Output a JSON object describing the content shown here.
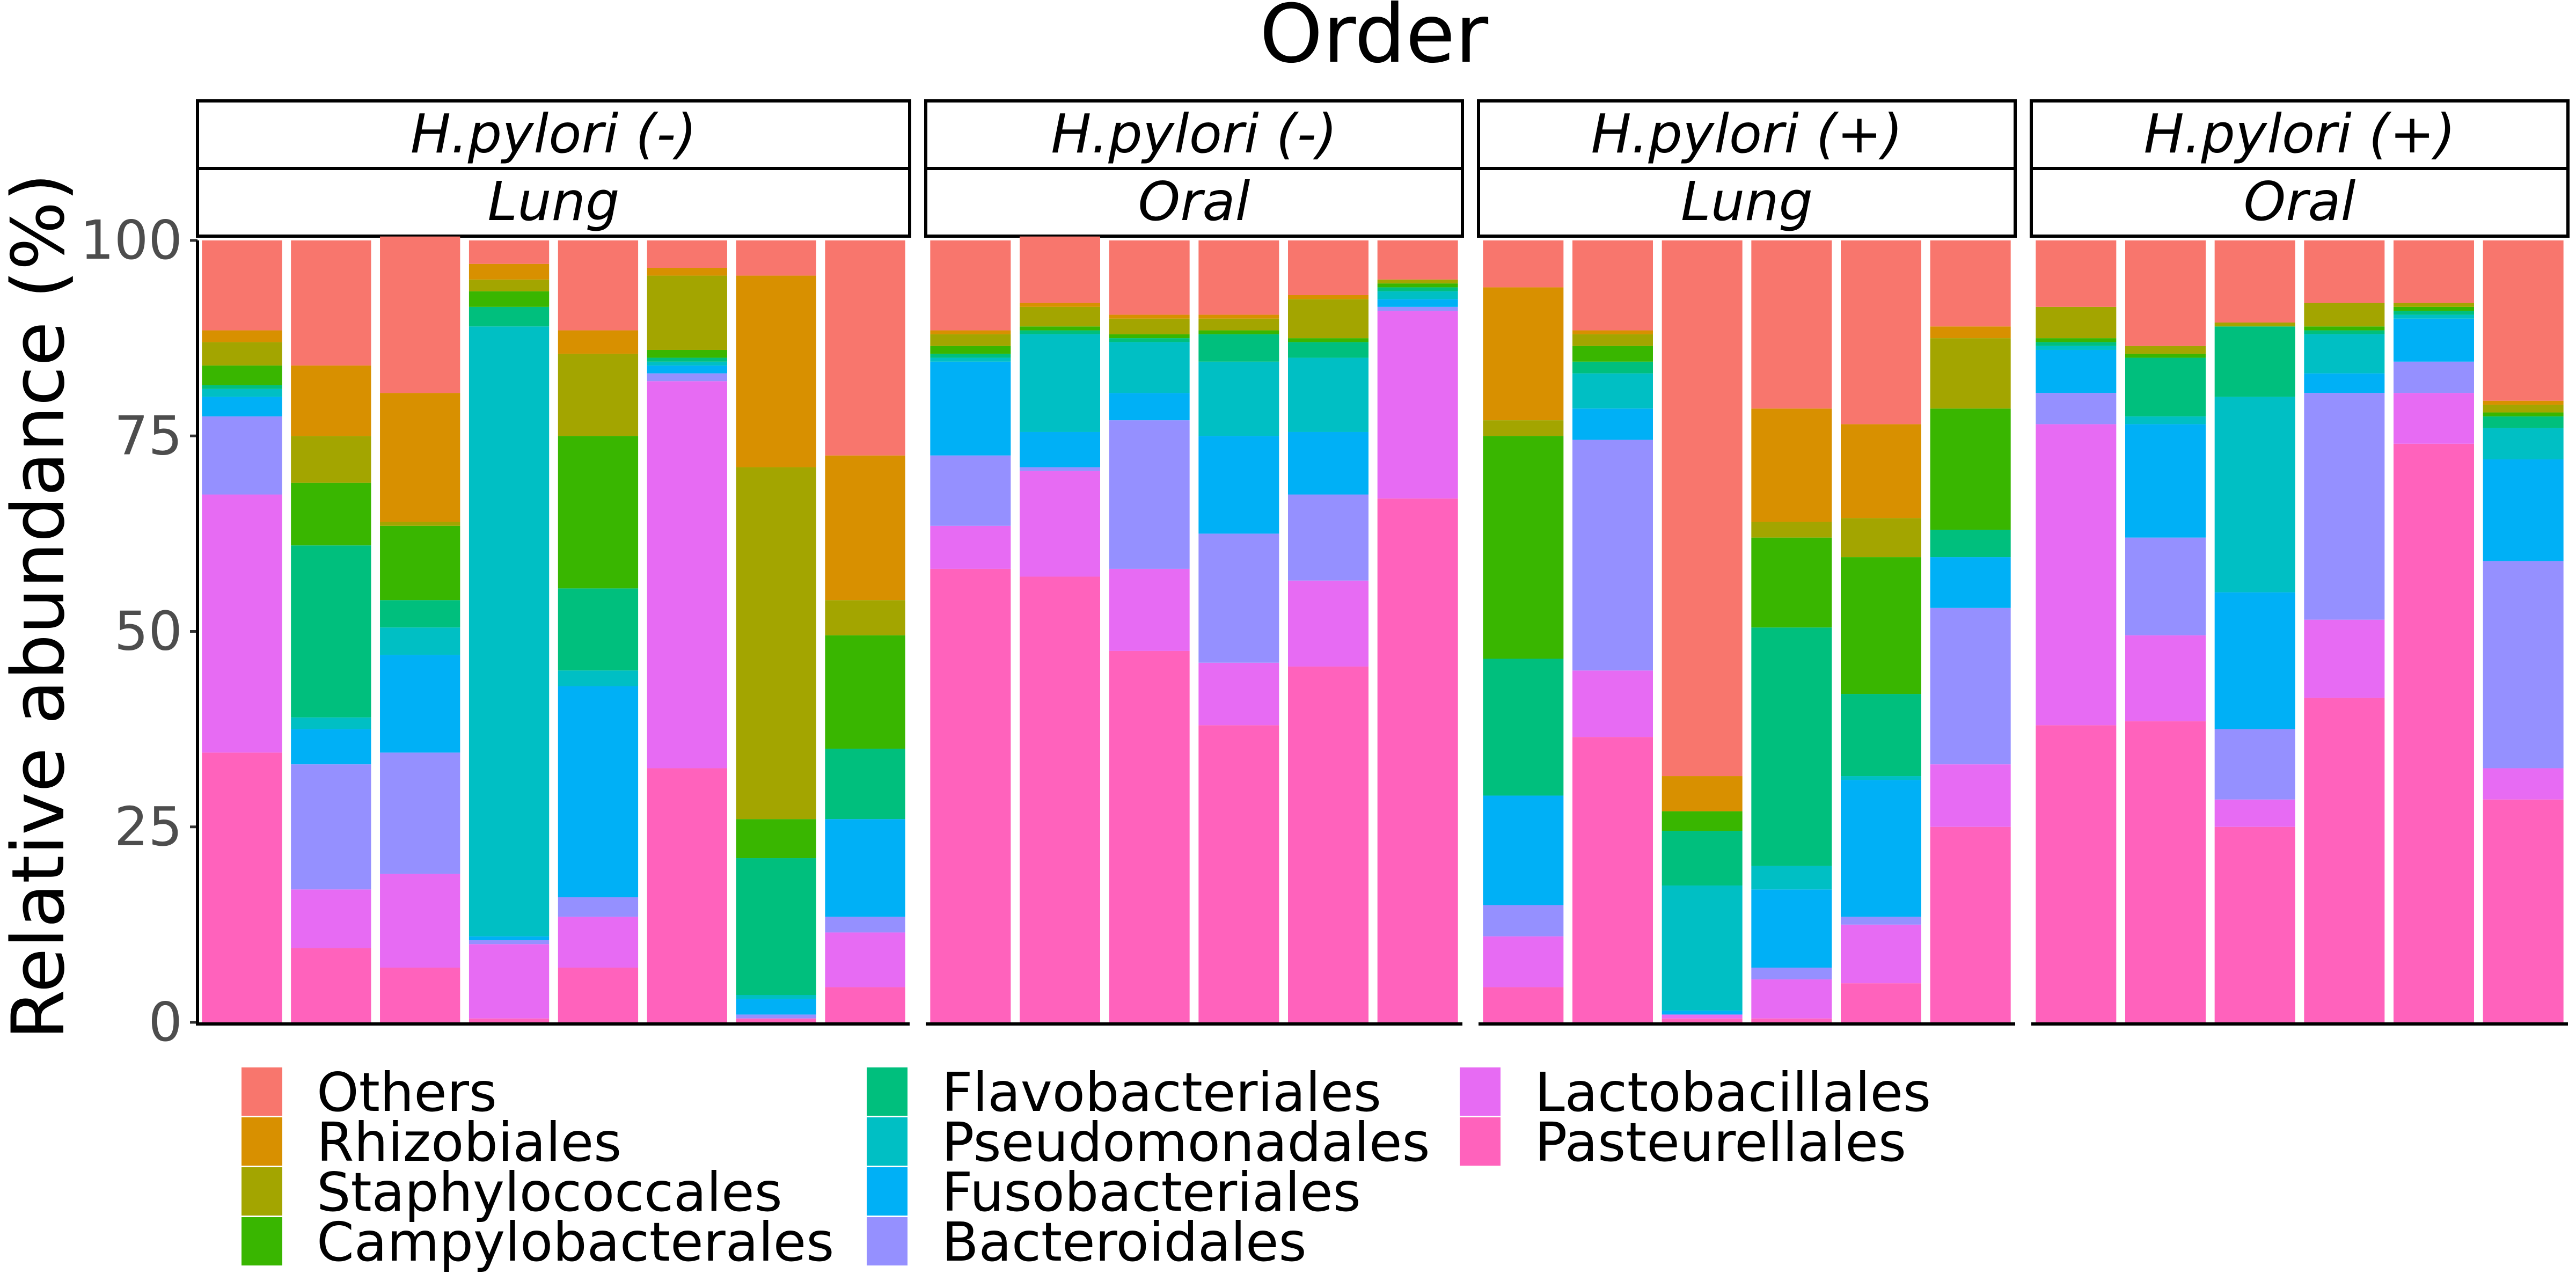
{
  "chart_data": {
    "type": "bar",
    "stacked": true,
    "title": "Order",
    "ylabel": "Relative abundance (%)",
    "ylim": [
      0,
      100
    ],
    "yticks": [
      0,
      25,
      50,
      75,
      100
    ],
    "grid": false,
    "legend_position": "bottom",
    "stack_order": [
      "Pasteurellales",
      "Lactobacillales",
      "Bacteroidales",
      "Fusobacteriales",
      "Pseudomonadales",
      "Flavobacteriales",
      "Campylobacterales",
      "Staphylococcales",
      "Rhizobiales",
      "Others"
    ],
    "legend": [
      {
        "name": "Others",
        "color": "#F8766D"
      },
      {
        "name": "Rhizobiales",
        "color": "#D89000"
      },
      {
        "name": "Staphylococcales",
        "color": "#A3A500"
      },
      {
        "name": "Campylobacterales",
        "color": "#39B600"
      },
      {
        "name": "Flavobacteriales",
        "color": "#00BF7D"
      },
      {
        "name": "Pseudomonadales",
        "color": "#00BFC4"
      },
      {
        "name": "Fusobacteriales",
        "color": "#00B0F6"
      },
      {
        "name": "Bacteroidales",
        "color": "#9590FF"
      },
      {
        "name": "Lactobacillales",
        "color": "#E76BF3"
      },
      {
        "name": "Pasteurellales",
        "color": "#FF62BC"
      }
    ],
    "panels": [
      {
        "strip": [
          "H.pylori (-)",
          "Lung"
        ],
        "bars": [
          {
            "Pasteurellales": 34.5,
            "Lactobacillales": 33.0,
            "Bacteroidales": 10.0,
            "Fusobacteriales": 2.5,
            "Pseudomonadales": 1.0,
            "Flavobacteriales": 0.5,
            "Campylobacterales": 2.5,
            "Staphylococcales": 3.0,
            "Rhizobiales": 1.5,
            "Others": 11.5
          },
          {
            "Pasteurellales": 9.5,
            "Lactobacillales": 7.5,
            "Bacteroidales": 16.0,
            "Fusobacteriales": 4.5,
            "Pseudomonadales": 1.5,
            "Flavobacteriales": 22.0,
            "Campylobacterales": 8.0,
            "Staphylococcales": 6.0,
            "Rhizobiales": 9.0,
            "Others": 16.0
          },
          {
            "Pasteurellales": 7.0,
            "Lactobacillales": 12.0,
            "Bacteroidales": 15.5,
            "Fusobacteriales": 12.5,
            "Pseudomonadales": 3.5,
            "Flavobacteriales": 3.5,
            "Campylobacterales": 9.5,
            "Staphylococcales": 0.5,
            "Rhizobiales": 16.5,
            "Others": 20.0
          },
          {
            "Pasteurellales": 0.5,
            "Lactobacillales": 9.5,
            "Bacteroidales": 0.5,
            "Fusobacteriales": 0.5,
            "Pseudomonadales": 78.0,
            "Flavobacteriales": 2.5,
            "Campylobacterales": 2.0,
            "Staphylococcales": 1.5,
            "Rhizobiales": 2.0,
            "Others": 3.0
          },
          {
            "Pasteurellales": 7.0,
            "Lactobacillales": 6.5,
            "Bacteroidales": 2.5,
            "Fusobacteriales": 27.0,
            "Pseudomonadales": 2.0,
            "Flavobacteriales": 10.5,
            "Campylobacterales": 19.5,
            "Staphylococcales": 10.5,
            "Rhizobiales": 3.0,
            "Others": 11.5
          },
          {
            "Pasteurellales": 32.5,
            "Lactobacillales": 49.5,
            "Bacteroidales": 1.0,
            "Fusobacteriales": 1.0,
            "Pseudomonadales": 0.5,
            "Flavobacteriales": 0.5,
            "Campylobacterales": 1.0,
            "Staphylococcales": 9.5,
            "Rhizobiales": 1.0,
            "Others": 3.5
          },
          {
            "Pasteurellales": 0.5,
            "Lactobacillales": 0.0,
            "Bacteroidales": 0.5,
            "Fusobacteriales": 2.0,
            "Pseudomonadales": 0.5,
            "Flavobacteriales": 17.5,
            "Campylobacterales": 5.0,
            "Staphylococcales": 45.0,
            "Rhizobiales": 24.5,
            "Others": 4.5
          },
          {
            "Pasteurellales": 4.5,
            "Lactobacillales": 7.0,
            "Bacteroidales": 2.0,
            "Fusobacteriales": 12.5,
            "Pseudomonadales": 0.0,
            "Flavobacteriales": 9.0,
            "Campylobacterales": 14.5,
            "Staphylococcales": 4.5,
            "Rhizobiales": 18.5,
            "Others": 27.5
          }
        ]
      },
      {
        "strip": [
          "H.pylori (-)",
          "Oral"
        ],
        "bars": [
          {
            "Pasteurellales": 58.0,
            "Lactobacillales": 5.5,
            "Bacteroidales": 9.0,
            "Fusobacteriales": 12.0,
            "Pseudomonadales": 0.5,
            "Flavobacteriales": 0.5,
            "Campylobacterales": 1.0,
            "Staphylococcales": 1.5,
            "Rhizobiales": 0.5,
            "Others": 11.5
          },
          {
            "Pasteurellales": 57.0,
            "Lactobacillales": 13.5,
            "Bacteroidales": 0.5,
            "Fusobacteriales": 4.5,
            "Pseudomonadales": 12.5,
            "Flavobacteriales": 0.5,
            "Campylobacterales": 0.5,
            "Staphylococcales": 2.5,
            "Rhizobiales": 0.5,
            "Others": 8.5
          },
          {
            "Pasteurellales": 47.5,
            "Lactobacillales": 10.5,
            "Bacteroidales": 19.0,
            "Fusobacteriales": 3.5,
            "Pseudomonadales": 6.5,
            "Flavobacteriales": 0.5,
            "Campylobacterales": 0.5,
            "Staphylococcales": 2.0,
            "Rhizobiales": 0.5,
            "Others": 9.5
          },
          {
            "Pasteurellales": 38.0,
            "Lactobacillales": 8.0,
            "Bacteroidales": 16.5,
            "Fusobacteriales": 12.5,
            "Pseudomonadales": 9.5,
            "Flavobacteriales": 3.5,
            "Campylobacterales": 0.5,
            "Staphylococcales": 1.5,
            "Rhizobiales": 0.5,
            "Others": 9.5
          },
          {
            "Pasteurellales": 45.5,
            "Lactobacillales": 11.0,
            "Bacteroidales": 11.0,
            "Fusobacteriales": 8.0,
            "Pseudomonadales": 9.5,
            "Flavobacteriales": 2.0,
            "Campylobacterales": 0.5,
            "Staphylococcales": 5.0,
            "Rhizobiales": 0.5,
            "Others": 7.0
          },
          {
            "Pasteurellales": 67.0,
            "Lactobacillales": 24.0,
            "Bacteroidales": 0.5,
            "Fusobacteriales": 1.0,
            "Pseudomonadales": 1.0,
            "Flavobacteriales": 0.5,
            "Campylobacterales": 0.5,
            "Staphylococcales": 0.5,
            "Rhizobiales": 0.0,
            "Others": 5.0
          }
        ]
      },
      {
        "strip": [
          "H.pylori (+)",
          "Lung"
        ],
        "bars": [
          {
            "Pasteurellales": 4.5,
            "Lactobacillales": 6.5,
            "Bacteroidales": 4.0,
            "Fusobacteriales": 14.0,
            "Pseudomonadales": 0.0,
            "Flavobacteriales": 17.5,
            "Campylobacterales": 28.5,
            "Staphylococcales": 2.0,
            "Rhizobiales": 17.0,
            "Others": 6.0
          },
          {
            "Pasteurellales": 36.5,
            "Lactobacillales": 8.5,
            "Bacteroidales": 29.5,
            "Fusobacteriales": 4.0,
            "Pseudomonadales": 4.5,
            "Flavobacteriales": 1.5,
            "Campylobacterales": 2.0,
            "Staphylococcales": 1.5,
            "Rhizobiales": 0.5,
            "Others": 11.5
          },
          {
            "Pasteurellales": 0.5,
            "Lactobacillales": 0.5,
            "Bacteroidales": 0.0,
            "Fusobacteriales": 0.5,
            "Pseudomonadales": 16.0,
            "Flavobacteriales": 7.0,
            "Campylobacterales": 2.5,
            "Staphylococcales": 0.0,
            "Rhizobiales": 4.5,
            "Others": 68.5
          },
          {
            "Pasteurellales": 0.5,
            "Lactobacillales": 5.0,
            "Bacteroidales": 1.5,
            "Fusobacteriales": 10.0,
            "Pseudomonadales": 3.0,
            "Flavobacteriales": 30.5,
            "Campylobacterales": 11.5,
            "Staphylococcales": 2.0,
            "Rhizobiales": 14.5,
            "Others": 21.5
          },
          {
            "Pasteurellales": 5.0,
            "Lactobacillales": 7.5,
            "Bacteroidales": 1.0,
            "Fusobacteriales": 17.5,
            "Pseudomonadales": 0.5,
            "Flavobacteriales": 10.5,
            "Campylobacterales": 17.5,
            "Staphylococcales": 5.0,
            "Rhizobiales": 12.0,
            "Others": 23.5
          },
          {
            "Pasteurellales": 25.0,
            "Lactobacillales": 8.0,
            "Bacteroidales": 20.0,
            "Fusobacteriales": 6.5,
            "Pseudomonadales": 0.0,
            "Flavobacteriales": 3.5,
            "Campylobacterales": 15.5,
            "Staphylococcales": 9.0,
            "Rhizobiales": 1.5,
            "Others": 11.0
          }
        ]
      },
      {
        "strip": [
          "H.pylori (+)",
          "Oral"
        ],
        "bars": [
          {
            "Pasteurellales": 38.0,
            "Lactobacillales": 38.5,
            "Bacteroidales": 4.0,
            "Fusobacteriales": 5.5,
            "Pseudomonadales": 0.5,
            "Flavobacteriales": 0.5,
            "Campylobacterales": 0.5,
            "Staphylococcales": 4.0,
            "Rhizobiales": 0.0,
            "Others": 8.5
          },
          {
            "Pasteurellales": 38.5,
            "Lactobacillales": 11.0,
            "Bacteroidales": 12.5,
            "Fusobacteriales": 14.5,
            "Pseudomonadales": 1.0,
            "Flavobacteriales": 7.5,
            "Campylobacterales": 0.5,
            "Staphylococcales": 1.0,
            "Rhizobiales": 0.0,
            "Others": 13.5
          },
          {
            "Pasteurellales": 25.0,
            "Lactobacillales": 3.5,
            "Bacteroidales": 9.0,
            "Fusobacteriales": 17.5,
            "Pseudomonadales": 25.0,
            "Flavobacteriales": 9.0,
            "Campylobacterales": 0.0,
            "Staphylococcales": 0.5,
            "Rhizobiales": 0.0,
            "Others": 10.5
          },
          {
            "Pasteurellales": 41.5,
            "Lactobacillales": 10.0,
            "Bacteroidales": 29.0,
            "Fusobacteriales": 2.5,
            "Pseudomonadales": 5.0,
            "Flavobacteriales": 0.5,
            "Campylobacterales": 0.5,
            "Staphylococcales": 3.0,
            "Rhizobiales": 0.0,
            "Others": 8.0
          },
          {
            "Pasteurellales": 74.0,
            "Lactobacillales": 6.5,
            "Bacteroidales": 4.0,
            "Fusobacteriales": 5.5,
            "Pseudomonadales": 0.5,
            "Flavobacteriales": 0.5,
            "Campylobacterales": 0.5,
            "Staphylococcales": 0.5,
            "Rhizobiales": 0.0,
            "Others": 8.0
          },
          {
            "Pasteurellales": 28.5,
            "Lactobacillales": 4.0,
            "Bacteroidales": 26.5,
            "Fusobacteriales": 13.0,
            "Pseudomonadales": 4.0,
            "Flavobacteriales": 1.5,
            "Campylobacterales": 0.5,
            "Staphylococcales": 1.0,
            "Rhizobiales": 0.5,
            "Others": 20.5
          }
        ]
      }
    ]
  }
}
